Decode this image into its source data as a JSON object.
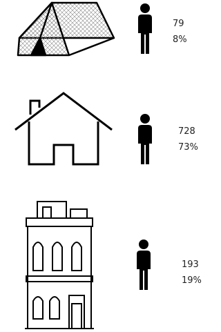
{
  "rows": [
    {
      "count": "79",
      "percent": "8%"
    },
    {
      "count": "728",
      "percent": "73%"
    },
    {
      "count": "193",
      "percent": "19%"
    }
  ]
}
